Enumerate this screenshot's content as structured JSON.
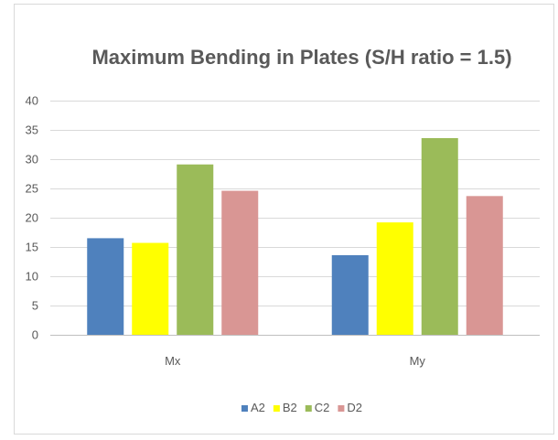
{
  "chart_data": {
    "type": "bar",
    "title": "Maximum Bending in Plates (S/H ratio = 1.5)",
    "xlabel": "",
    "ylabel": "",
    "categories": [
      "Mx",
      "My"
    ],
    "series": [
      {
        "name": "A2",
        "values": [
          16.5,
          13.6
        ],
        "color": "#4f81bd"
      },
      {
        "name": "B2",
        "values": [
          15.7,
          19.2
        ],
        "color": "#ffff00"
      },
      {
        "name": "C2",
        "values": [
          29.1,
          33.6
        ],
        "color": "#9bbb59"
      },
      {
        "name": "D2",
        "values": [
          24.6,
          23.7
        ],
        "color": "#d99694"
      }
    ],
    "ylim": [
      0,
      40
    ],
    "yticks": [
      "0",
      "5",
      "10",
      "15",
      "20",
      "25",
      "30",
      "35",
      "40"
    ],
    "grid": true,
    "legend": "bottom"
  }
}
